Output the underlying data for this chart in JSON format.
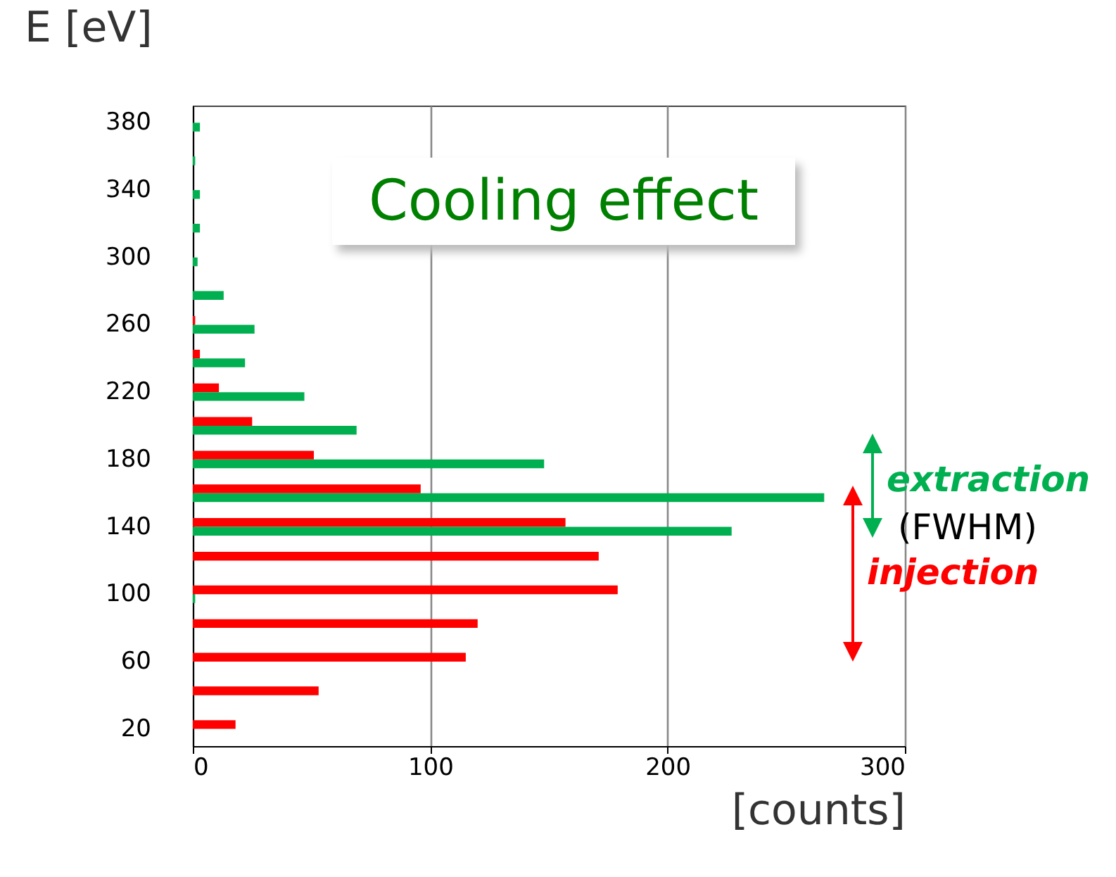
{
  "chart_data": {
    "type": "bar",
    "orientation": "horizontal",
    "title": "Cooling effect",
    "xlabel": "[counts]",
    "ylabel": "E [eV]",
    "categories": [
      "380",
      null,
      "340",
      null,
      "300",
      null,
      "260",
      null,
      "220",
      null,
      "180",
      null,
      "140",
      null,
      "100",
      null,
      "60",
      null,
      "20"
    ],
    "series": [
      {
        "name": "injection",
        "color": "#ff0000",
        "values": [
          0,
          0,
          0,
          0,
          0,
          0,
          1,
          3,
          11,
          25,
          51,
          96,
          157,
          171,
          179,
          120,
          115,
          53,
          18
        ]
      },
      {
        "name": "extraction",
        "color": "#00b050",
        "values": [
          3,
          1,
          3,
          3,
          2,
          13,
          26,
          22,
          47,
          69,
          148,
          266,
          227,
          0,
          1,
          0,
          0,
          0,
          0
        ]
      }
    ],
    "annotations": [
      "(FWHM)"
    ],
    "xlim": [
      0,
      300
    ],
    "xticks": [
      0,
      100,
      200,
      300
    ],
    "grid": "x",
    "legend": false
  }
}
